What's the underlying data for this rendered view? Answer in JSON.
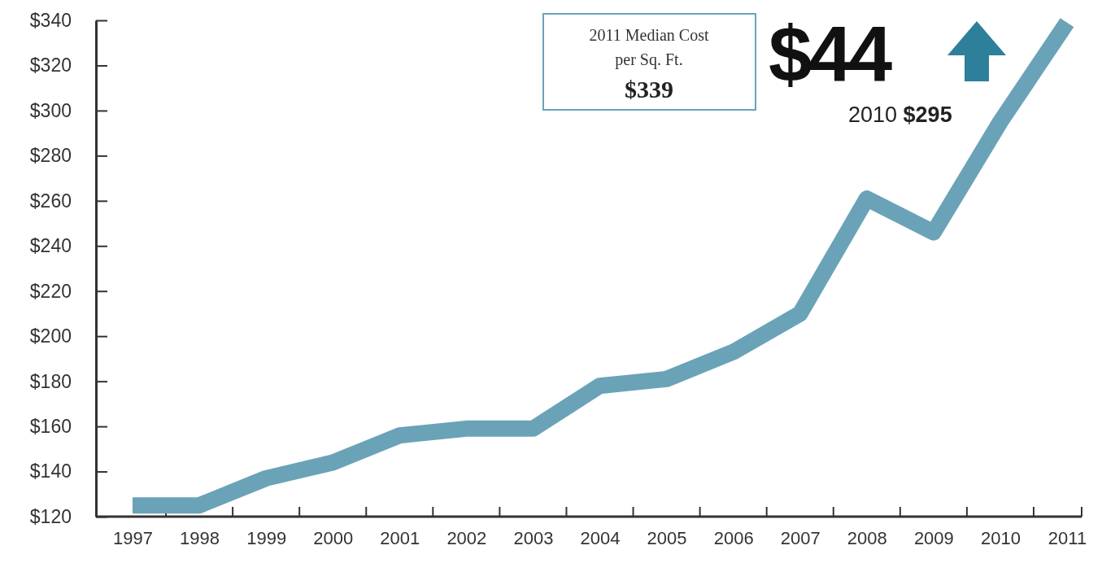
{
  "chart_data": {
    "type": "line",
    "categories": [
      "1997",
      "1998",
      "1999",
      "2000",
      "2001",
      "2002",
      "2003",
      "2004",
      "2005",
      "2006",
      "2007",
      "2008",
      "2009",
      "2010",
      "2011"
    ],
    "series": [
      {
        "color": "#6aa3b8",
        "values": [
          125,
          125,
          137,
          144,
          156,
          159,
          159,
          178,
          181,
          193,
          210,
          261,
          246,
          295,
          339
        ]
      }
    ],
    "ylim": [
      120,
      340
    ],
    "yticks": [
      {
        "value": 120,
        "label": "$120"
      },
      {
        "value": 140,
        "label": "$140"
      },
      {
        "value": 160,
        "label": "$160"
      },
      {
        "value": 180,
        "label": "$180"
      },
      {
        "value": 200,
        "label": "$200"
      },
      {
        "value": 220,
        "label": "$220"
      },
      {
        "value": 240,
        "label": "$240"
      },
      {
        "value": 260,
        "label": "$260"
      },
      {
        "value": 280,
        "label": "$280"
      },
      {
        "value": 300,
        "label": "$300"
      },
      {
        "value": 320,
        "label": "$320"
      },
      {
        "value": 340,
        "label": "$340"
      }
    ],
    "grid": false,
    "marker": "none",
    "line_style": "solid",
    "annotations": [
      "2011 Median Cost per Sq. Ft.",
      "$339",
      "$44",
      "2010 $295"
    ]
  }
}
